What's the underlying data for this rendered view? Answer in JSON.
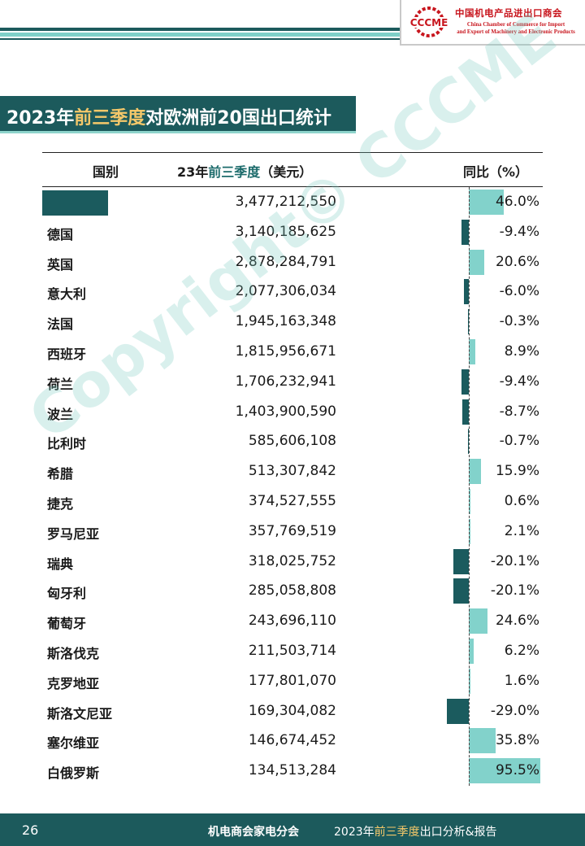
{
  "header": {
    "logo_abbr": "CCCME",
    "logo_cn": "中国机电产品进出口商会",
    "logo_en_line1": "China Chamber of Commerce for Import",
    "logo_en_line2": "and Export of Machinery and Electronic Products"
  },
  "title": {
    "part1": "2023年",
    "highlight": "前三季度",
    "part2": "对欧洲前20国出口统计"
  },
  "table": {
    "col_country": "国别",
    "col_value_prefix": "23年",
    "col_value_highlight": "前三季度",
    "col_value_suffix": "（美元）",
    "col_yoy": "同比（%）",
    "rows": [
      {
        "country": "",
        "value": "3,477,212,550",
        "yoy": "46.0%",
        "yoy_num": 46.0
      },
      {
        "country": "德国",
        "value": "3,140,185,625",
        "yoy": "-9.4%",
        "yoy_num": -9.4
      },
      {
        "country": "英国",
        "value": "2,878,284,791",
        "yoy": "20.6%",
        "yoy_num": 20.6
      },
      {
        "country": "意大利",
        "value": "2,077,306,034",
        "yoy": "-6.0%",
        "yoy_num": -6.0
      },
      {
        "country": "法国",
        "value": "1,945,163,348",
        "yoy": "-0.3%",
        "yoy_num": -0.3
      },
      {
        "country": "西班牙",
        "value": "1,815,956,671",
        "yoy": "8.9%",
        "yoy_num": 8.9
      },
      {
        "country": "荷兰",
        "value": "1,706,232,941",
        "yoy": "-9.4%",
        "yoy_num": -9.4
      },
      {
        "country": "波兰",
        "value": "1,403,900,590",
        "yoy": "-8.7%",
        "yoy_num": -8.7
      },
      {
        "country": "比利时",
        "value": "585,606,108",
        "yoy": "-0.7%",
        "yoy_num": -0.7
      },
      {
        "country": "希腊",
        "value": "513,307,842",
        "yoy": "15.9%",
        "yoy_num": 15.9
      },
      {
        "country": "捷克",
        "value": "374,527,555",
        "yoy": "0.6%",
        "yoy_num": 0.6
      },
      {
        "country": "罗马尼亚",
        "value": "357,769,519",
        "yoy": "2.1%",
        "yoy_num": 2.1
      },
      {
        "country": "瑞典",
        "value": "318,025,752",
        "yoy": "-20.1%",
        "yoy_num": -20.1
      },
      {
        "country": "匈牙利",
        "value": "285,058,808",
        "yoy": "-20.1%",
        "yoy_num": -20.1
      },
      {
        "country": "葡萄牙",
        "value": "243,696,110",
        "yoy": "24.6%",
        "yoy_num": 24.6
      },
      {
        "country": "斯洛伐克",
        "value": "211,503,714",
        "yoy": "6.2%",
        "yoy_num": 6.2
      },
      {
        "country": "克罗地亚",
        "value": "177,801,070",
        "yoy": "1.6%",
        "yoy_num": 1.6
      },
      {
        "country": "斯洛文尼亚",
        "value": "169,304,082",
        "yoy": "-29.0%",
        "yoy_num": -29.0
      },
      {
        "country": "塞尔维亚",
        "value": "146,674,452",
        "yoy": "35.8%",
        "yoy_num": 35.8
      },
      {
        "country": "白俄罗斯",
        "value": "134,513,284",
        "yoy": "95.5%",
        "yoy_num": 95.5
      }
    ]
  },
  "watermark": "Copyright© CCCME",
  "footer": {
    "page_number": "26",
    "org": "机电商会家电分会",
    "report_prefix": "2023年",
    "report_highlight": "前三季度",
    "report_suffix": "出口分析&报告"
  },
  "colors": {
    "primary": "#1c5a5c",
    "accent": "#82d2cb",
    "highlight": "#f5c86a",
    "logo_red": "#c8161e"
  }
}
